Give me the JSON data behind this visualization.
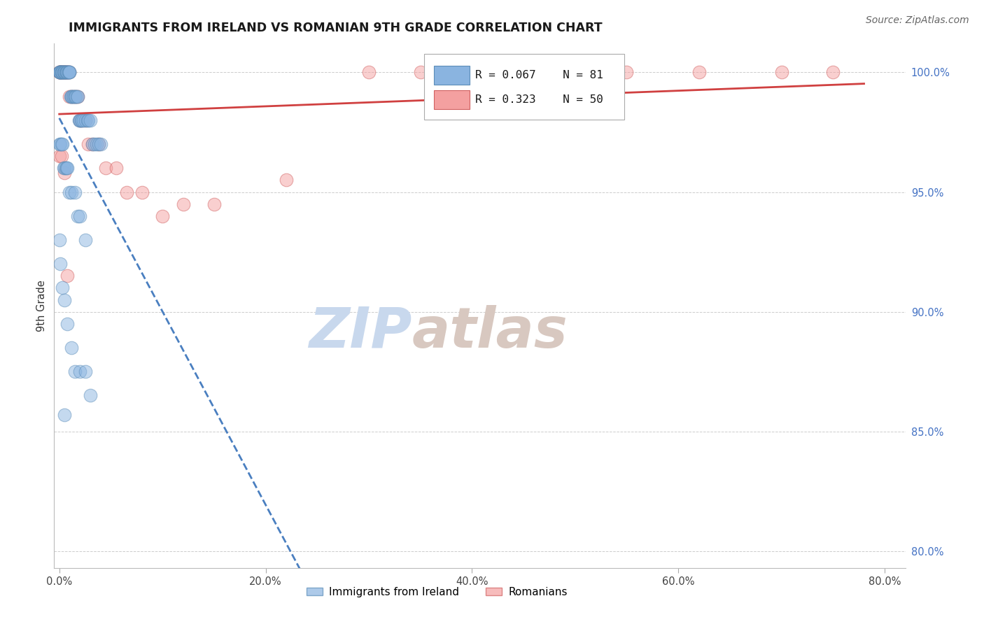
{
  "title": "IMMIGRANTS FROM IRELAND VS ROMANIAN 9TH GRADE CORRELATION CHART",
  "source": "Source: ZipAtlas.com",
  "ylabel_label": "9th Grade",
  "xlim_min": -0.005,
  "xlim_max": 0.82,
  "ylim_min": 0.793,
  "ylim_max": 1.012,
  "x_ticks": [
    0.0,
    0.2,
    0.4,
    0.6,
    0.8
  ],
  "x_tick_labels": [
    "0.0%",
    "20.0%",
    "40.0%",
    "60.0%",
    "80.0%"
  ],
  "y_ticks": [
    0.8,
    0.85,
    0.9,
    0.95,
    1.0
  ],
  "y_tick_labels": [
    "80.0%",
    "85.0%",
    "90.0%",
    "95.0%",
    "100.0%"
  ],
  "ireland_R": 0.067,
  "ireland_N": 81,
  "romanian_R": 0.323,
  "romanian_N": 50,
  "ireland_color": "#8ab4e0",
  "irish_edge_color": "#5b8db8",
  "romanian_color": "#f4a0a0",
  "romanian_edge_color": "#d06060",
  "ireland_line_color": "#4a7fc0",
  "romanian_line_color": "#d04040",
  "grid_color": "#cccccc",
  "watermark_zip_color": "#c8d8ed",
  "watermark_atlas_color": "#d8c8c0",
  "ireland_x": [
    0.0,
    0.0,
    0.0,
    0.001,
    0.001,
    0.001,
    0.001,
    0.002,
    0.002,
    0.002,
    0.003,
    0.003,
    0.003,
    0.004,
    0.004,
    0.005,
    0.005,
    0.005,
    0.005,
    0.006,
    0.006,
    0.007,
    0.007,
    0.008,
    0.008,
    0.009,
    0.009,
    0.01,
    0.01,
    0.01,
    0.011,
    0.012,
    0.012,
    0.013,
    0.014,
    0.015,
    0.015,
    0.016,
    0.017,
    0.018,
    0.019,
    0.02,
    0.02,
    0.021,
    0.022,
    0.023,
    0.025,
    0.027,
    0.028,
    0.03,
    0.032,
    0.034,
    0.036,
    0.038,
    0.04,
    0.0,
    0.001,
    0.002,
    0.003,
    0.004,
    0.005,
    0.006,
    0.007,
    0.008,
    0.01,
    0.012,
    0.015,
    0.018,
    0.02,
    0.025,
    0.0,
    0.001,
    0.003,
    0.005,
    0.008,
    0.012,
    0.015,
    0.02,
    0.025,
    0.03,
    0.005
  ],
  "ireland_y": [
    1.0,
    1.0,
    1.0,
    1.0,
    1.0,
    1.0,
    1.0,
    1.0,
    1.0,
    1.0,
    1.0,
    1.0,
    1.0,
    1.0,
    1.0,
    1.0,
    1.0,
    1.0,
    1.0,
    1.0,
    1.0,
    1.0,
    1.0,
    1.0,
    1.0,
    1.0,
    1.0,
    1.0,
    1.0,
    1.0,
    0.99,
    0.99,
    0.99,
    0.99,
    0.99,
    0.99,
    0.99,
    0.99,
    0.99,
    0.99,
    0.98,
    0.98,
    0.98,
    0.98,
    0.98,
    0.98,
    0.98,
    0.98,
    0.98,
    0.98,
    0.97,
    0.97,
    0.97,
    0.97,
    0.97,
    0.97,
    0.97,
    0.97,
    0.97,
    0.96,
    0.96,
    0.96,
    0.96,
    0.96,
    0.95,
    0.95,
    0.95,
    0.94,
    0.94,
    0.93,
    0.93,
    0.92,
    0.91,
    0.905,
    0.895,
    0.885,
    0.875,
    0.875,
    0.875,
    0.865,
    0.857
  ],
  "romanian_x": [
    0.0,
    0.0,
    0.0,
    0.001,
    0.001,
    0.001,
    0.002,
    0.002,
    0.003,
    0.003,
    0.004,
    0.004,
    0.005,
    0.005,
    0.006,
    0.006,
    0.007,
    0.008,
    0.009,
    0.01,
    0.01,
    0.012,
    0.014,
    0.016,
    0.018,
    0.02,
    0.022,
    0.025,
    0.028,
    0.032,
    0.038,
    0.045,
    0.055,
    0.065,
    0.08,
    0.1,
    0.12,
    0.15,
    0.22,
    0.3,
    0.35,
    0.42,
    0.55,
    0.62,
    0.7,
    0.75,
    0.0,
    0.002,
    0.005,
    0.008
  ],
  "romanian_y": [
    1.0,
    1.0,
    1.0,
    1.0,
    1.0,
    1.0,
    1.0,
    1.0,
    1.0,
    1.0,
    1.0,
    1.0,
    1.0,
    1.0,
    1.0,
    1.0,
    1.0,
    1.0,
    1.0,
    1.0,
    0.99,
    0.99,
    0.99,
    0.99,
    0.99,
    0.98,
    0.98,
    0.98,
    0.97,
    0.97,
    0.97,
    0.96,
    0.96,
    0.95,
    0.95,
    0.94,
    0.945,
    0.945,
    0.955,
    1.0,
    1.0,
    1.0,
    1.0,
    1.0,
    1.0,
    1.0,
    0.965,
    0.965,
    0.958,
    0.915
  ]
}
